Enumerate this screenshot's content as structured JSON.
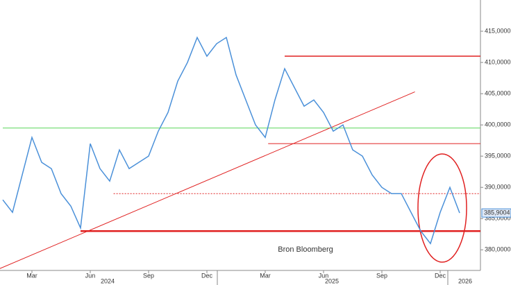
{
  "chart_data": {
    "type": "line",
    "categories": [
      null,
      null,
      null,
      "Mar",
      null,
      null,
      null,
      null,
      null,
      "Jun",
      null,
      null,
      null,
      null,
      null,
      "Sep",
      null,
      null,
      null,
      null,
      null,
      "Dec",
      null,
      null,
      null,
      null,
      null,
      "Mar",
      null,
      null,
      null,
      null,
      null,
      "Jun",
      null,
      null,
      null,
      null,
      null,
      "Sep",
      null,
      null,
      null,
      null,
      null,
      "Dec",
      null,
      null
    ],
    "series": [
      {
        "color": "#4a90d9",
        "values": [
          388,
          386,
          392,
          398,
          394,
          393,
          389,
          387,
          383.5,
          397,
          393,
          391,
          396,
          393,
          394,
          395,
          399,
          402,
          407,
          410,
          414,
          411,
          413,
          414,
          408,
          404,
          400,
          398,
          404,
          409,
          406,
          403,
          404,
          402,
          399,
          400,
          396,
          395,
          392,
          390,
          389,
          389,
          386,
          383,
          381,
          386,
          390,
          385.9004
        ]
      }
    ],
    "years": [
      "2024",
      "2025",
      "2026"
    ],
    "ylim": [
      376.7,
      420
    ],
    "yticks": [
      {
        "value": 380,
        "label": "380,0000"
      },
      {
        "value": 385,
        "label": "385,0000"
      },
      {
        "value": 390,
        "label": "390,0000"
      },
      {
        "value": 395,
        "label": "395,0000"
      },
      {
        "value": 400,
        "label": "400,0000"
      },
      {
        "value": 405,
        "label": "405,0000"
      },
      {
        "value": 410,
        "label": "410,0000"
      },
      {
        "value": 415,
        "label": "415,0000"
      }
    ],
    "last_value_label": {
      "value": 385.9004,
      "label": "385,9004"
    },
    "levels": [
      {
        "value": 411,
        "from": 29,
        "color": "#e02020",
        "width": 1.5,
        "dash": "none"
      },
      {
        "value": 397,
        "from": 27.3,
        "color": "#e02020",
        "width": 1,
        "dash": "none"
      },
      {
        "value": 399.5,
        "from": 0,
        "color": "#5cd65c",
        "width": 1,
        "dash": "none"
      },
      {
        "value": 389,
        "from": 11.4,
        "color": "#e02020",
        "width": 1,
        "dash": "2,2"
      },
      {
        "value": 383,
        "from": 8,
        "color": "#e02020",
        "width": 2.5,
        "dash": "none"
      }
    ],
    "trendline": {
      "from": [
        -0.3,
        377
      ],
      "to": [
        42.4,
        405.3
      ],
      "color": "#e02020"
    },
    "annotation": "Bron Bloomberg"
  }
}
